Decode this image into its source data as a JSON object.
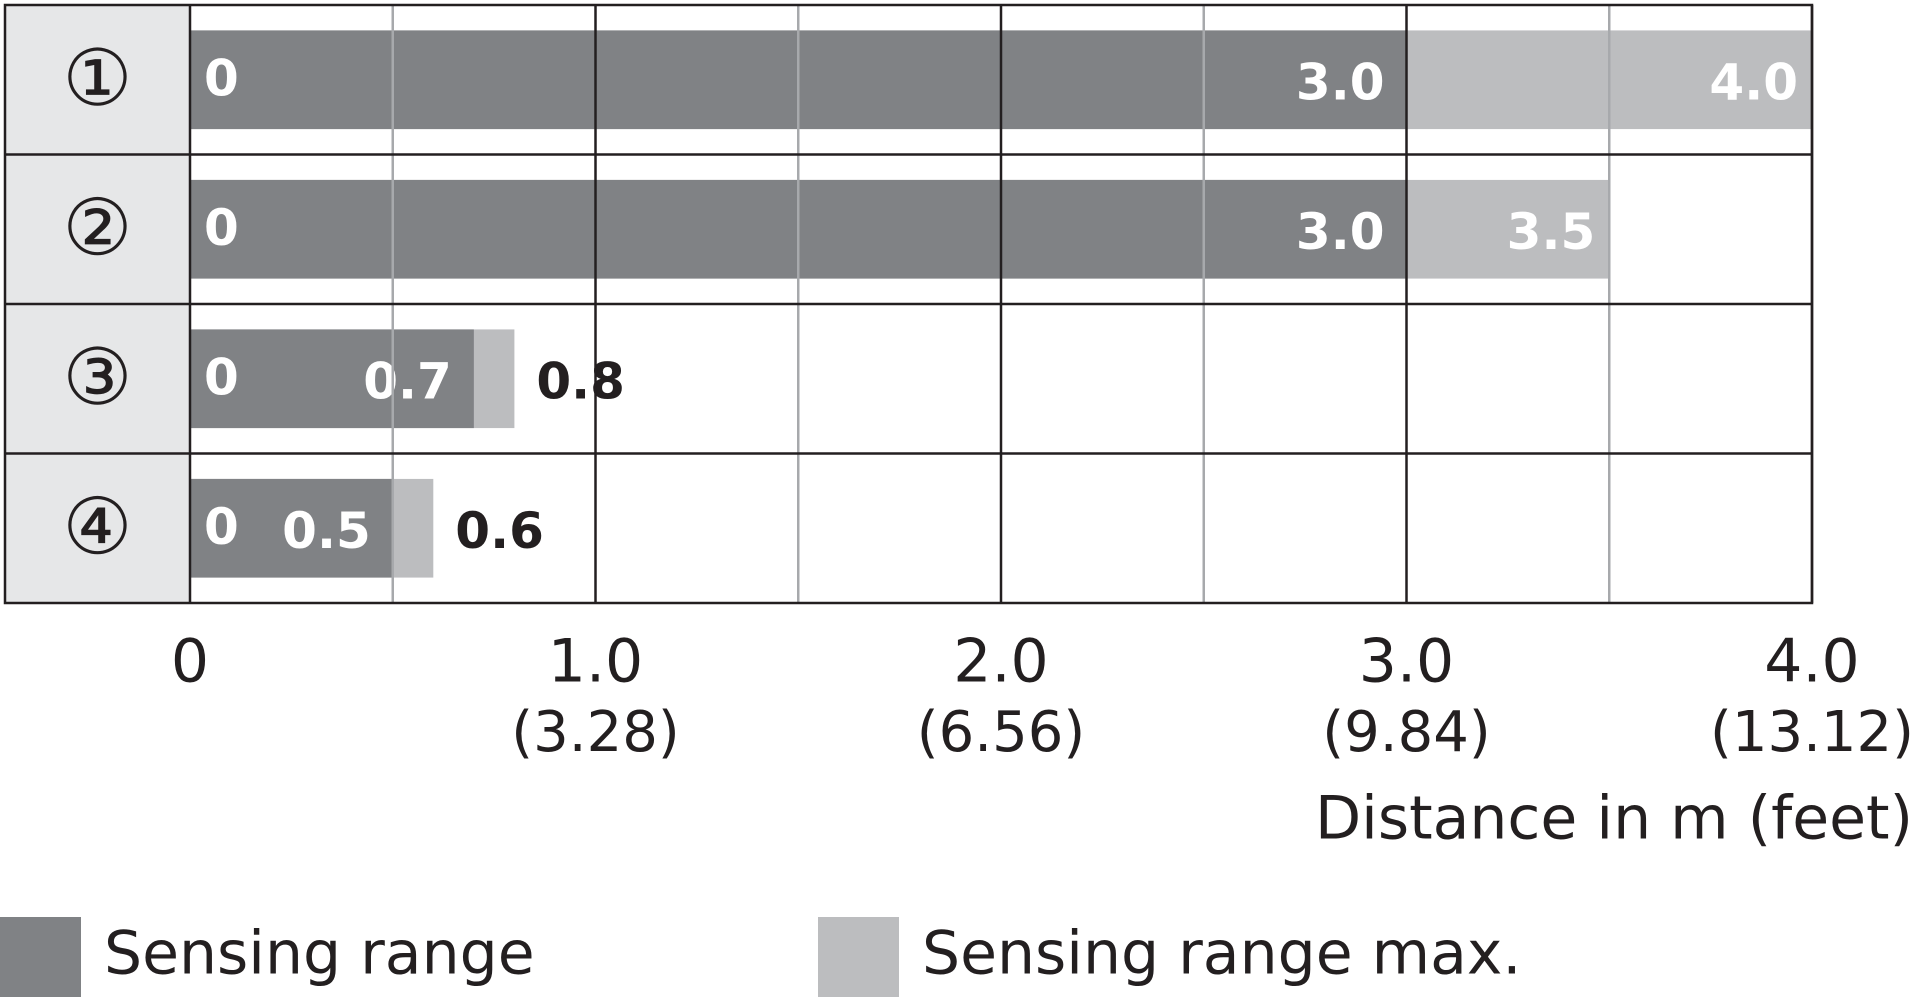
{
  "chart_data": {
    "type": "range-bar",
    "categories": [
      "①",
      "②",
      "③",
      "④"
    ],
    "bar_start": [
      0,
      0,
      0,
      0
    ],
    "series": [
      {
        "name": "Sensing range",
        "color": "#808285",
        "values": [
          3.0,
          3.0,
          0.7,
          0.5
        ],
        "value_labels": [
          "3.0",
          "3.0",
          "0.7",
          "0.5"
        ]
      },
      {
        "name": "Sensing range max.",
        "color": "#bcbdbf",
        "values": [
          4.0,
          3.5,
          0.8,
          0.6
        ],
        "value_labels": [
          "4.0",
          "3.5",
          "0.8",
          "0.6"
        ]
      }
    ],
    "xlim": [
      0,
      4
    ],
    "xticks": [
      0,
      {
        "value": 1,
        "label": "1.0"
      },
      {
        "value": 2,
        "label": "2.0"
      },
      {
        "value": 3,
        "label": "3.0"
      },
      {
        "value": 4,
        "label": "4.0"
      }
    ],
    "xtick_feet_labels": [
      null,
      "(3.28)",
      "(6.56)",
      "(9.84)",
      "(13.12)"
    ],
    "xminorticks": [
      0.5,
      1.5,
      2.5,
      3.5
    ],
    "xlabel": "Distance in m (feet)",
    "grid": true
  }
}
